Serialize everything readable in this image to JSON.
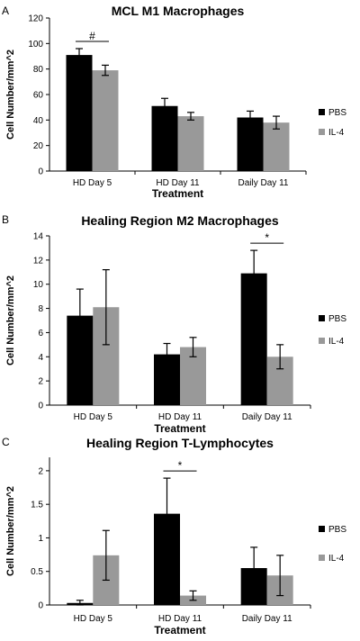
{
  "colors": {
    "PBS": "#000000",
    "IL-4": "#999999",
    "axis": "#000000"
  },
  "chart_data": [
    {
      "type": "bar",
      "panel": "A",
      "title": "MCL M1 Macrophages",
      "xlabel": "Treatment",
      "ylabel": "Cell Number/mm^2",
      "categories": [
        "HD Day 5",
        "HD Day 11",
        "Daily Day 11"
      ],
      "ylim": [
        0,
        120
      ],
      "yticks": [
        0,
        20,
        40,
        60,
        80,
        100,
        120
      ],
      "ytick_labels": [
        "0",
        "20",
        "40",
        "60",
        "80",
        "100",
        "120"
      ],
      "series": [
        {
          "name": "PBS",
          "values": [
            91,
            51,
            42
          ],
          "errors": [
            5,
            6,
            5
          ]
        },
        {
          "name": "IL-4",
          "values": [
            79,
            43,
            38
          ],
          "errors": [
            4,
            3,
            5
          ]
        }
      ],
      "legend": [
        "PBS",
        "IL-4"
      ],
      "legend_position": "right",
      "annotations": [
        {
          "text": "#",
          "category": 0
        }
      ],
      "grid": false
    },
    {
      "type": "bar",
      "panel": "B",
      "title": "Healing Region M2 Macrophages",
      "xlabel": "Treatment",
      "ylabel": "Cell Number/mm^2",
      "categories": [
        "HD Day 5",
        "HD Day 11",
        "Daily Day 11"
      ],
      "ylim": [
        0,
        14
      ],
      "yticks": [
        0,
        2,
        4,
        6,
        8,
        10,
        12,
        14
      ],
      "ytick_labels": [
        "0",
        "2",
        "4",
        "6",
        "8",
        "10",
        "12",
        "14"
      ],
      "series": [
        {
          "name": "PBS",
          "values": [
            7.4,
            4.2,
            10.9
          ],
          "errors": [
            2.2,
            0.9,
            1.9
          ]
        },
        {
          "name": "IL-4",
          "values": [
            8.1,
            4.8,
            4.0
          ],
          "errors": [
            3.1,
            0.8,
            1.0
          ]
        }
      ],
      "legend": [
        "PBS",
        "IL-4"
      ],
      "legend_position": "right",
      "annotations": [
        {
          "text": "*",
          "category": 2
        }
      ],
      "grid": false
    },
    {
      "type": "bar",
      "panel": "C",
      "title": "Healing Region T-Lymphocytes",
      "xlabel": "Treatment",
      "ylabel": "Cell Number/mm^2",
      "categories": [
        "HD Day 5",
        "HD Day 11",
        "Daily Day 11"
      ],
      "ylim": [
        0,
        2.2
      ],
      "yticks": [
        0,
        0.5,
        1,
        1.5,
        2
      ],
      "ytick_labels": [
        "0",
        "0.5",
        "1",
        "1.5",
        "2"
      ],
      "series": [
        {
          "name": "PBS",
          "values": [
            0.03,
            1.36,
            0.55
          ],
          "errors": [
            0.04,
            0.53,
            0.31
          ]
        },
        {
          "name": "IL-4",
          "values": [
            0.74,
            0.14,
            0.44
          ],
          "errors": [
            0.37,
            0.07,
            0.3
          ]
        }
      ],
      "legend": [
        "PBS",
        "IL-4"
      ],
      "legend_position": "right",
      "annotations": [
        {
          "text": "*",
          "category": 1
        }
      ],
      "grid": false
    }
  ]
}
